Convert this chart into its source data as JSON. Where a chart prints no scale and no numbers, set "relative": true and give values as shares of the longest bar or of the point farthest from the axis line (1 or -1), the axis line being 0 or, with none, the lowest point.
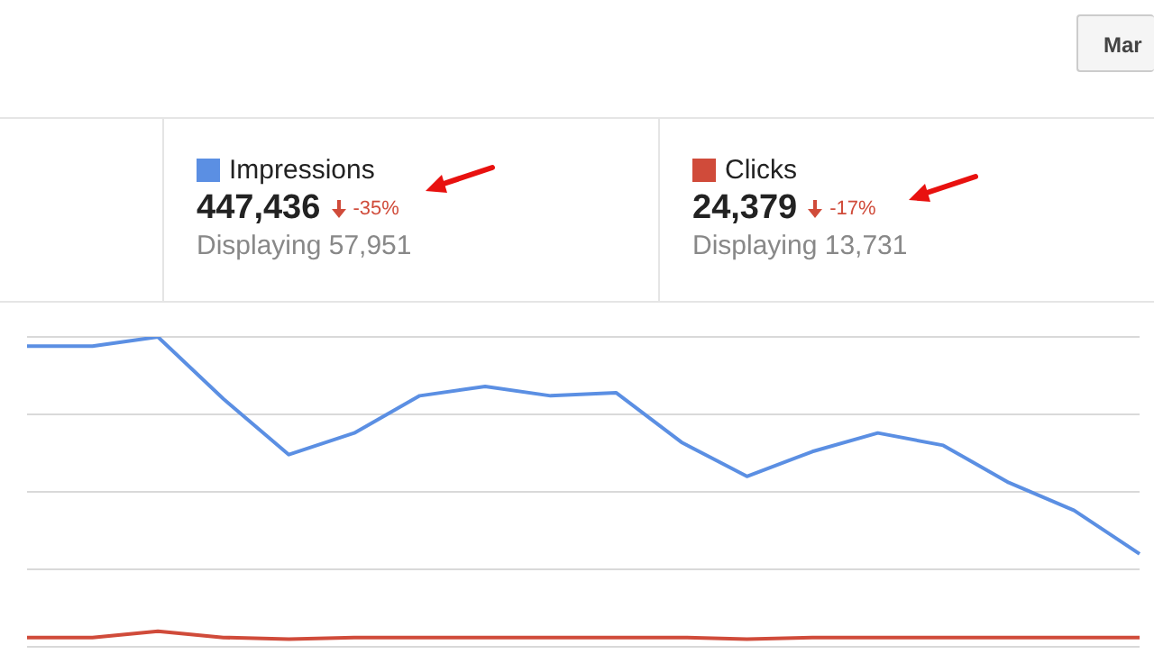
{
  "chart_data": {
    "type": "line",
    "relative": true,
    "categories": [
      null,
      null,
      null,
      null,
      null,
      null,
      null,
      null,
      null,
      null,
      null,
      null,
      null,
      null,
      null,
      null,
      null,
      null
    ],
    "series": [
      {
        "name": "Impressions",
        "color": "#5b8fe3",
        "values": [
          0.97,
          0.97,
          1,
          0.8,
          0.62,
          0.69,
          0.81,
          0.84,
          0.81,
          0.82,
          0.66,
          0.55,
          0.63,
          0.69,
          0.65,
          0.53,
          0.44,
          0.3
        ]
      },
      {
        "name": "Clicks",
        "color": "#d04b3a",
        "values": [
          0.03,
          0.03,
          0.05,
          0.03,
          0.025,
          0.03,
          0.03,
          0.03,
          0.03,
          0.03,
          0.03,
          0.025,
          0.03,
          0.03,
          0.03,
          0.03,
          0.03,
          0.03
        ]
      }
    ],
    "legend": "top",
    "grid": "y",
    "marker": "none",
    "annotations": [
      "447,436",
      "-35%",
      "Displaying 57,951",
      "24,379",
      "-17%",
      "Displaying 13,731",
      "Mar"
    ]
  }
}
